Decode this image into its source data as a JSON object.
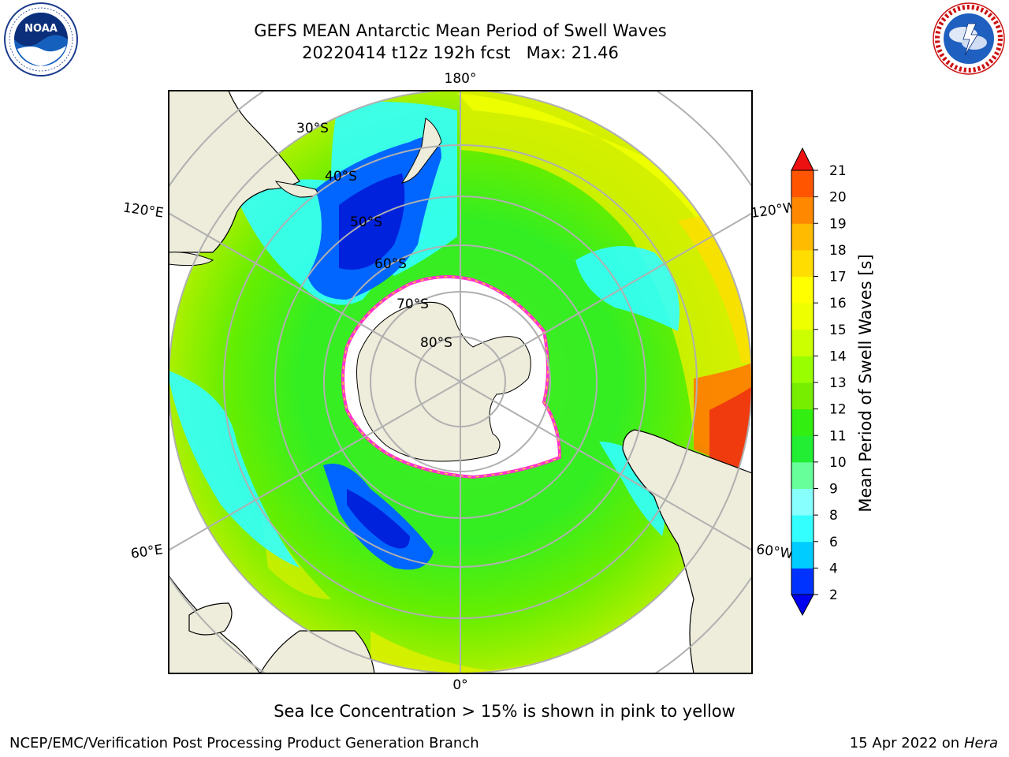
{
  "title": {
    "line1": "GEFS MEAN Antarctic Mean Period of Swell Waves",
    "line2": "20220414 t12z 192h fcst   Max: 21.46"
  },
  "map": {
    "projection": "south-polar-stereographic",
    "longitude_labels": [
      "180°",
      "120°E",
      "120°W",
      "60°E",
      "60°W",
      "0°"
    ],
    "latitude_labels": [
      "30°S",
      "40°S",
      "50°S",
      "60°S",
      "70°S",
      "80°S"
    ],
    "land_color": "#eeecda",
    "ice_edge_colors": [
      "#ff33cc",
      "#ffcc33"
    ]
  },
  "colorbar": {
    "label": "Mean Period of Swell Waves [s]",
    "ticks": [
      "2",
      "4",
      "6",
      "8",
      "9",
      "10",
      "11",
      "12",
      "13",
      "14",
      "15",
      "16",
      "17",
      "18",
      "19",
      "20",
      "21"
    ],
    "colors": [
      "#0033ff",
      "#00ccff",
      "#33ffff",
      "#88ffff",
      "#66ff99",
      "#22ee33",
      "#33ee11",
      "#77ee00",
      "#99ff00",
      "#ccff00",
      "#eeff00",
      "#ffff00",
      "#ffdd00",
      "#ffbb00",
      "#ff8800",
      "#ff5500",
      "#ff2200"
    ],
    "under_color": "#0000ee",
    "over_color": "#ee1111"
  },
  "caption": "Sea Ice Concentration > 15% is shown in pink to yellow",
  "footer": {
    "left": "NCEP/EMC/Verification Post Processing Product Generation Branch",
    "right_date": "15 Apr 2022 on ",
    "right_host": "Hera"
  },
  "logos": {
    "noaa_text": "NOAA",
    "nws_icon": "nws-logo-icon",
    "noaa_icon": "noaa-logo-icon"
  }
}
